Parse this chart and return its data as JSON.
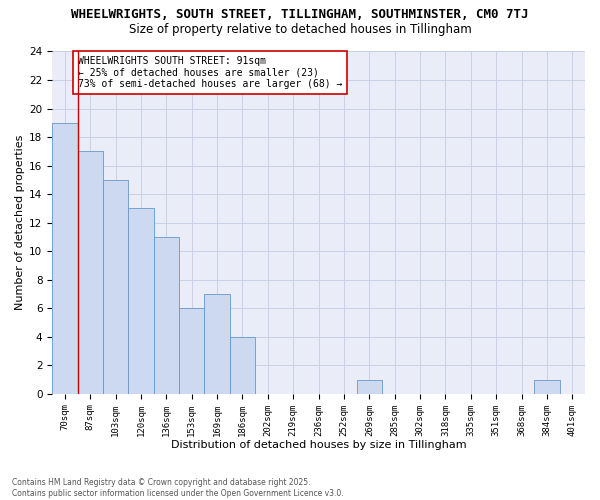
{
  "title_line1": "WHEELWRIGHTS, SOUTH STREET, TILLINGHAM, SOUTHMINSTER, CM0 7TJ",
  "title_line2": "Size of property relative to detached houses in Tillingham",
  "xlabel": "Distribution of detached houses by size in Tillingham",
  "ylabel": "Number of detached properties",
  "bin_labels": [
    "70sqm",
    "87sqm",
    "103sqm",
    "120sqm",
    "136sqm",
    "153sqm",
    "169sqm",
    "186sqm",
    "202sqm",
    "219sqm",
    "236sqm",
    "252sqm",
    "269sqm",
    "285sqm",
    "302sqm",
    "318sqm",
    "335sqm",
    "351sqm",
    "368sqm",
    "384sqm",
    "401sqm"
  ],
  "bar_heights": [
    19,
    17,
    15,
    13,
    11,
    6,
    7,
    4,
    0,
    0,
    0,
    0,
    1,
    0,
    0,
    0,
    0,
    0,
    0,
    1,
    0
  ],
  "bar_color": "#ccd9f0",
  "bar_edgecolor": "#6699cc",
  "grid_color": "#c8d0e8",
  "background_color": "#eaecf8",
  "vline_color": "#cc0000",
  "annotation_text": "WHEELWRIGHTS SOUTH STREET: 91sqm\n← 25% of detached houses are smaller (23)\n73% of semi-detached houses are larger (68) →",
  "annotation_box_edgecolor": "#cc0000",
  "ylim": [
    0,
    24
  ],
  "yticks": [
    0,
    2,
    4,
    6,
    8,
    10,
    12,
    14,
    16,
    18,
    20,
    22,
    24
  ],
  "footnote": "Contains HM Land Registry data © Crown copyright and database right 2025.\nContains public sector information licensed under the Open Government Licence v3.0."
}
